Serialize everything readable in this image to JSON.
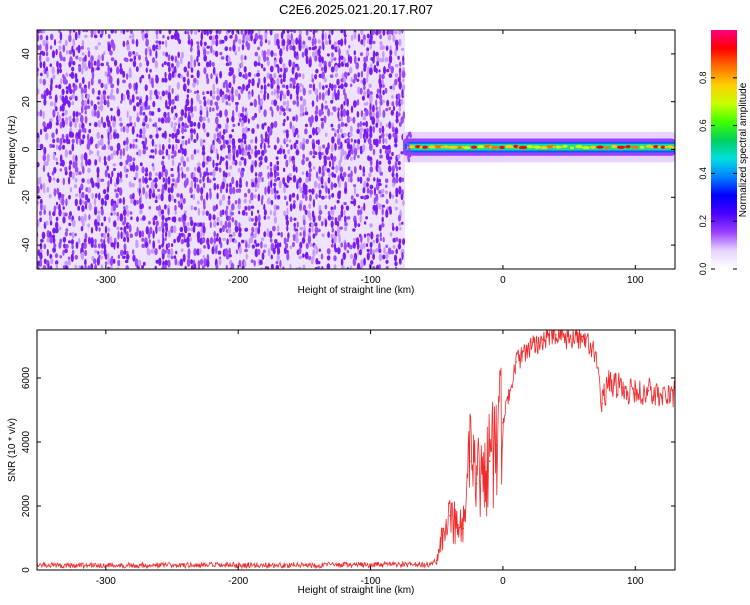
{
  "title": "C2E6.2025.021.20.17.R07",
  "colorbar": {
    "label": "Normalized spectral amplitude",
    "ticks": [
      "0.0",
      "0.2",
      "0.4",
      "0.6",
      "0.8"
    ],
    "tick_values": [
      0.0,
      0.2,
      0.4,
      0.6,
      0.8
    ],
    "range": [
      0,
      1
    ],
    "colors": [
      "#ffffff",
      "#e6d4ff",
      "#9a40ff",
      "#4a00ff",
      "#0000ff",
      "#0080ff",
      "#00e0e0",
      "#00d060",
      "#40ff00",
      "#c8ff00",
      "#ffd000",
      "#ff7000",
      "#ff0000",
      "#ff0080"
    ]
  },
  "chart_data": [
    {
      "type": "heatmap",
      "xlabel": "Height of straight line (km)",
      "ylabel": "Frequency (Hz)",
      "xlim": [
        -352,
        130
      ],
      "ylim": [
        -50,
        50
      ],
      "xticks": [
        -300,
        -200,
        -100,
        0,
        100
      ],
      "xtick_labels": [
        "-300",
        "-200",
        "-100",
        "0",
        "100"
      ],
      "yticks": [
        -40,
        -20,
        0,
        20,
        40
      ],
      "ytick_labels": [
        "-40",
        "-20",
        "0",
        "20",
        "40"
      ],
      "noise_region": {
        "x": [
          -352,
          -74
        ],
        "y": [
          -50,
          50
        ],
        "typical_amplitude": 0.05
      },
      "signal_band": {
        "x": [
          -74,
          130
        ],
        "center_frequency": 1,
        "half_width_hz": 4,
        "peak_amplitude": 0.95
      },
      "grid": false
    },
    {
      "type": "line",
      "xlabel": "Height of straight line (km)",
      "ylabel": "SNR (10 * v/v)",
      "xlim": [
        -352,
        130
      ],
      "ylim": [
        0,
        7500
      ],
      "xticks": [
        -300,
        -200,
        -100,
        0,
        100
      ],
      "xtick_labels": [
        "-300",
        "-200",
        "-100",
        "0",
        "100"
      ],
      "yticks": [
        0,
        2000,
        4000,
        6000
      ],
      "ytick_labels": [
        "0",
        "2000",
        "4000",
        "6000"
      ],
      "color": "#ee2a2a",
      "grid": false,
      "x": [
        -352,
        -300,
        -200,
        -100,
        -55,
        -50,
        -45,
        -40,
        -35,
        -30,
        -25,
        -20,
        -15,
        -10,
        -5,
        0,
        5,
        10,
        20,
        30,
        40,
        50,
        60,
        70,
        75,
        80,
        90,
        100,
        110,
        120,
        130
      ],
      "y": [
        150,
        150,
        150,
        160,
        170,
        300,
        1300,
        1700,
        1500,
        1300,
        3400,
        2700,
        3000,
        3400,
        3900,
        4600,
        5600,
        6500,
        6900,
        7200,
        7350,
        7200,
        7300,
        6800,
        5200,
        5900,
        5700,
        5500,
        5600,
        5400,
        5500
      ]
    }
  ]
}
